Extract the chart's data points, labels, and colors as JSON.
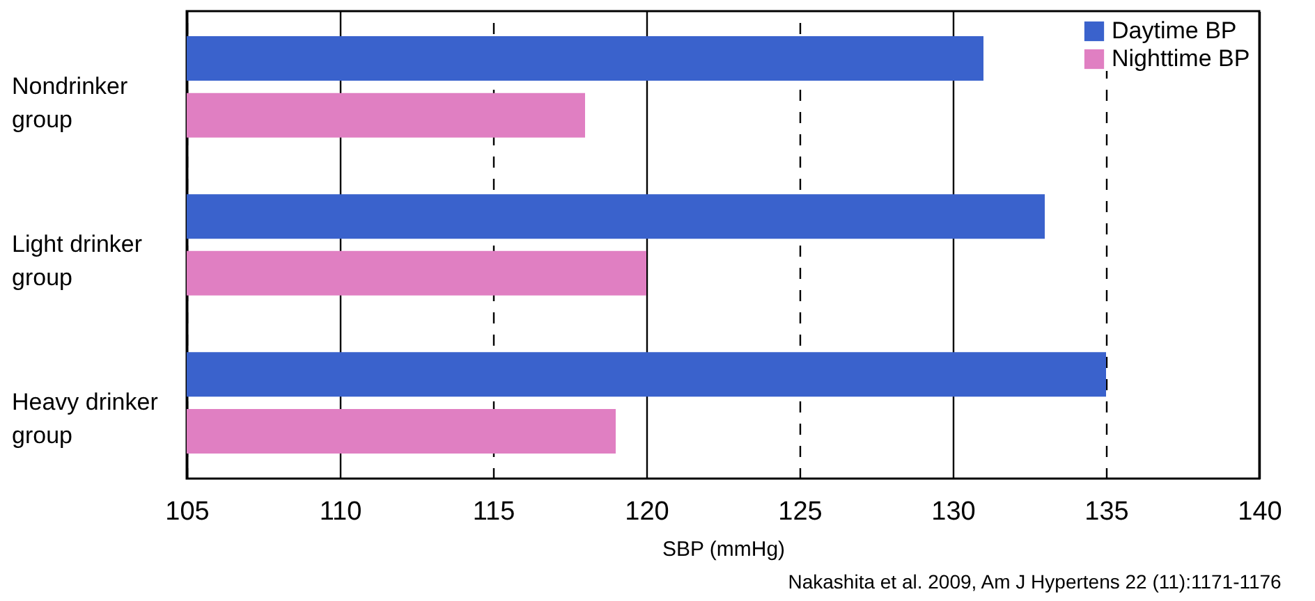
{
  "chart_data": {
    "type": "bar",
    "orientation": "horizontal",
    "xlabel": "SBP (mmHg)",
    "categories": [
      "Nondrinker group",
      "Light drinker group",
      "Heavy drinker group"
    ],
    "series": [
      {
        "name": "Daytime BP",
        "color": "#3a62cc",
        "values": [
          131,
          133,
          135
        ]
      },
      {
        "name": "Nighttime BP",
        "color": "#e07fc2",
        "values": [
          118,
          120,
          119
        ]
      }
    ],
    "xlim": [
      105,
      140
    ],
    "xticks": [
      105,
      110,
      115,
      120,
      125,
      130,
      135,
      140
    ],
    "grid": "x",
    "legend": "top right",
    "annotations": [
      "Nakashita  et al. 2009,  Am J Hypertens 22 (11):1171-1176"
    ]
  }
}
